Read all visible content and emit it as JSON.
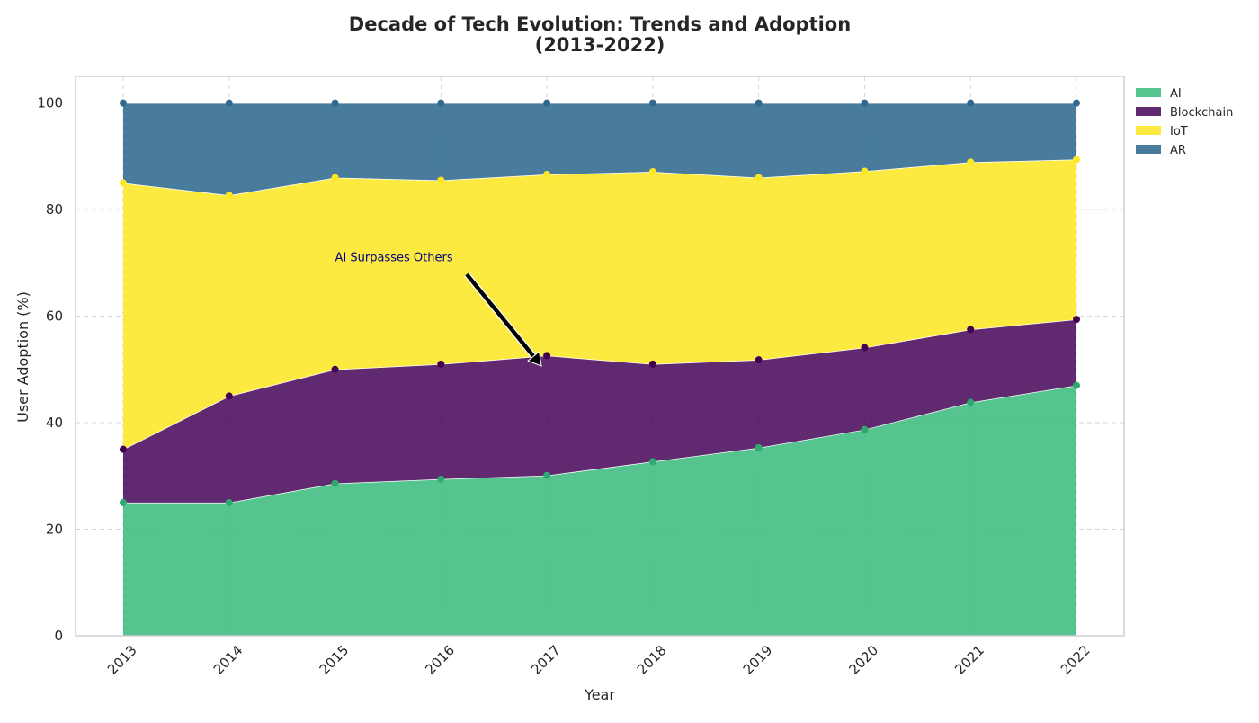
{
  "chart_data": {
    "type": "area",
    "stacked": true,
    "title": "Decade of Tech Evolution: Trends and Adoption",
    "subtitle": "(2013-2022)",
    "xlabel": "Year",
    "ylabel": "User Adoption (%)",
    "x": [
      "2013",
      "2014",
      "2015",
      "2016",
      "2017",
      "2018",
      "2019",
      "2020",
      "2021",
      "2022"
    ],
    "ylim": [
      0,
      105
    ],
    "yticks": [
      0,
      20,
      40,
      60,
      80,
      100
    ],
    "grid": true,
    "legend_position": "upper-right-outside",
    "series": [
      {
        "name": "AI",
        "color": "#3dbc7f",
        "marker_color": "#2eaa70",
        "values": [
          25,
          25,
          28.6,
          29.4,
          30.1,
          32.7,
          35.3,
          38.7,
          43.8,
          47
        ]
      },
      {
        "name": "Blockchain",
        "color": "#4b0b5c",
        "marker_color": "#440154",
        "values": [
          10,
          20,
          21.4,
          21.6,
          22.5,
          18.3,
          16.5,
          15.4,
          13.7,
          12.4
        ]
      },
      {
        "name": "IoT",
        "color": "#fde725",
        "marker_color": "#fde725",
        "values": [
          50,
          37.7,
          36,
          34.5,
          34,
          36.1,
          34.2,
          33.1,
          31.4,
          30
        ]
      },
      {
        "name": "AR",
        "color": "#306a8e",
        "marker_color": "#31688e",
        "values": [
          15,
          17.3,
          14,
          14.5,
          13.4,
          12.9,
          14,
          12.8,
          11.1,
          10.6
        ]
      }
    ],
    "annotation": {
      "text": "AI Surpasses Others",
      "x": "2017",
      "y": 52.5,
      "text_x": "2015",
      "text_y": 70
    }
  }
}
